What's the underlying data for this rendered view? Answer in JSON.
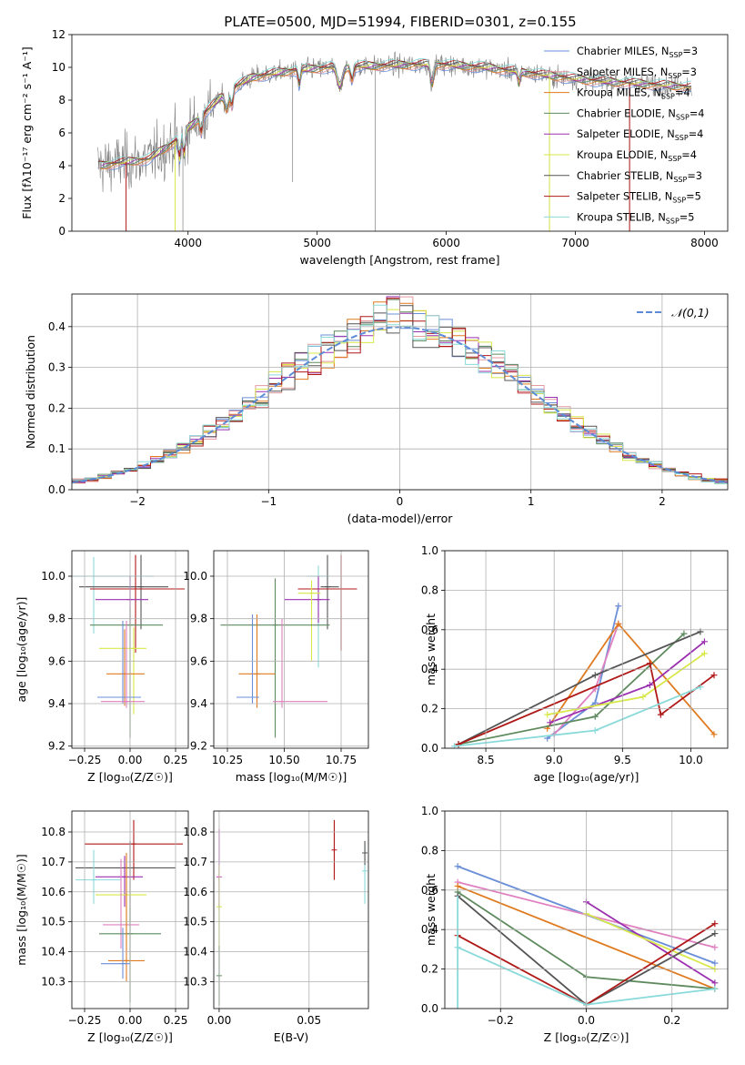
{
  "figure": {
    "title": "PLATE=0500, MJD=51994, FIBERID=0301, z=0.155"
  },
  "colors": {
    "chabrier_miles": "#6a8fd8",
    "salpeter_miles": "#e49a9f",
    "kroupa_miles": "#e07a1f",
    "chabrier_elodie": "#5e8a5e",
    "salpeter_elodie": "#9b30b0",
    "kroupa_elodie": "#d8e84a",
    "chabrier_stelib": "#555555",
    "salpeter_stelib": "#b01818",
    "kroupa_stelib": "#8adada",
    "extra_magenta": "#d048c8",
    "extra_pink": "#e080c0",
    "data_grey": "#808080",
    "normal_curve": "#5b8bd6"
  },
  "chart_data": [
    {
      "id": "spectrum",
      "type": "line",
      "xlabel": "wavelength [Angstrom, rest frame]",
      "ylabel": "Flux [fλ10⁻¹⁷ erg cm⁻² s⁻¹ A⁻¹]",
      "xlim": [
        3100,
        8180
      ],
      "ylim": [
        0,
        12
      ],
      "xticks": [
        4000,
        5000,
        6000,
        7000,
        8000
      ],
      "yticks": [
        0,
        2,
        4,
        6,
        8,
        10,
        12
      ],
      "legend_position": "upper right",
      "continuum": {
        "x": [
          3300,
          3500,
          3700,
          3900,
          4100,
          4300,
          4500,
          4800,
          5100,
          5500,
          5900,
          6300,
          6700,
          7100,
          7500,
          7900
        ],
        "y": [
          4.0,
          4.2,
          4.4,
          5.5,
          7.0,
          8.5,
          9.4,
          9.8,
          10.0,
          10.1,
          10.2,
          10.0,
          9.6,
          9.2,
          9.0,
          8.8
        ]
      },
      "series": [
        {
          "name": "Chabrier MILES, N",
          "sub": "SSP",
          "suffix": "=3",
          "color_key": "chabrier_miles"
        },
        {
          "name": "Salpeter MILES, N",
          "sub": "SSP",
          "suffix": "=3",
          "color_key": "salpeter_miles"
        },
        {
          "name": "Kroupa MILES, N",
          "sub": "SSP",
          "suffix": "=4",
          "color_key": "kroupa_miles"
        },
        {
          "name": "Chabrier ELODIE, N",
          "sub": "SSP",
          "suffix": "=4",
          "color_key": "chabrier_elodie"
        },
        {
          "name": "Salpeter ELODIE, N",
          "sub": "SSP",
          "suffix": "=4",
          "color_key": "salpeter_elodie"
        },
        {
          "name": "Kroupa ELODIE, N",
          "sub": "SSP",
          "suffix": "=4",
          "color_key": "kroupa_elodie"
        },
        {
          "name": "Chabrier STELIB, N",
          "sub": "SSP",
          "suffix": "=3",
          "color_key": "chabrier_stelib"
        },
        {
          "name": "Salpeter STELIB, N",
          "sub": "SSP",
          "suffix": "=5",
          "color_key": "salpeter_stelib"
        },
        {
          "name": "Kroupa STELIB, N",
          "sub": "SSP",
          "suffix": "=5",
          "color_key": "kroupa_stelib"
        }
      ]
    },
    {
      "id": "residuals",
      "type": "area",
      "xlabel": "(data-model)/error",
      "ylabel": "Normed distribution",
      "xlim": [
        -2.5,
        2.5
      ],
      "ylim": [
        0,
        0.48
      ],
      "xticks": [
        -2,
        -1,
        0,
        1,
        2
      ],
      "yticks": [
        0.0,
        0.1,
        0.2,
        0.3,
        0.4
      ],
      "legend": "𝒩(0,1)",
      "legend_position": "upper right",
      "bin_width": 0.1
    },
    {
      "id": "age_vs_Z",
      "type": "scatter",
      "xlabel": "Z [log₁₀(Z/Z☉)]",
      "ylabel": "age  [log₁₀(age/yr)]",
      "xlim": [
        -0.32,
        0.32
      ],
      "ylim": [
        9.19,
        10.12
      ],
      "xticks": [
        -0.25,
        0.0,
        0.25
      ],
      "yticks": [
        9.2,
        9.4,
        9.6,
        9.8,
        10.0
      ],
      "points": [
        {
          "x": -0.2,
          "y": 10.0,
          "xerr": [
            0.18,
            0.33
          ],
          "yerr": [
            0.27,
            0.09
          ],
          "c": "kroupa_stelib"
        },
        {
          "x": 0.06,
          "y": 9.95,
          "xerr": [
            0.34,
            0.15
          ],
          "yerr": [
            0.2,
            0.15
          ],
          "c": "chabrier_stelib"
        },
        {
          "x": 0.03,
          "y": 9.94,
          "xerr": [
            0.25,
            0.27
          ],
          "yerr": [
            0.3,
            0.16
          ],
          "c": "salpeter_stelib"
        },
        {
          "x": 0.0,
          "y": 9.89,
          "xerr": [
            0.19,
            0.1
          ],
          "yerr": [
            0.12,
            0.11
          ],
          "c": "salpeter_elodie"
        },
        {
          "x": 0.0,
          "y": 9.77,
          "xerr": [
            0.22,
            0.18
          ],
          "yerr": [
            0.53,
            0.08
          ],
          "c": "chabrier_elodie"
        },
        {
          "x": 0.02,
          "y": 9.66,
          "xerr": [
            0.19,
            0.07
          ],
          "yerr": [
            0.31,
            0.1
          ],
          "c": "kroupa_elodie"
        },
        {
          "x": -0.03,
          "y": 9.54,
          "xerr": [
            0.1,
            0.11
          ],
          "yerr": [
            0.15,
            0.21
          ],
          "c": "kroupa_miles"
        },
        {
          "x": -0.04,
          "y": 9.43,
          "xerr": [
            0.14,
            0.1
          ],
          "yerr": [
            0.03,
            0.36
          ],
          "c": "chabrier_miles"
        },
        {
          "x": -0.02,
          "y": 9.41,
          "xerr": [
            0.14,
            0.1
          ],
          "yerr": [
            0.03,
            0.38
          ],
          "c": "extra_pink"
        }
      ]
    },
    {
      "id": "age_vs_mass",
      "type": "scatter",
      "xlabel": "mass [log₁₀(M/M☉)]",
      "ylabel": "",
      "xlim": [
        10.19,
        10.87
      ],
      "ylim": [
        9.19,
        10.12
      ],
      "xticks": [
        10.25,
        10.5,
        10.75
      ],
      "yticks": [
        9.2,
        9.4,
        9.6,
        9.8,
        10.0
      ],
      "points": [
        {
          "x": 10.65,
          "y": 10.0,
          "xerr": [
            0.05,
            0.05
          ],
          "yerr": [
            0.43,
            0.05
          ],
          "c": "kroupa_stelib"
        },
        {
          "x": 10.69,
          "y": 9.95,
          "xerr": [
            0.03,
            0.05
          ],
          "yerr": [
            0.2,
            0.15
          ],
          "c": "chabrier_stelib"
        },
        {
          "x": 10.75,
          "y": 9.94,
          "xerr": [
            0.19,
            0.07
          ],
          "yerr": [
            0.29,
            0.16
          ],
          "c": "salpeter_stelib"
        },
        {
          "x": 10.65,
          "y": 9.89,
          "xerr": [
            0.15,
            0.05
          ],
          "yerr": [
            0.11,
            0.11
          ],
          "c": "salpeter_elodie"
        },
        {
          "x": 10.62,
          "y": 9.92,
          "xerr": [
            0.06,
            0.04
          ],
          "yerr": [
            0.32,
            0.06
          ],
          "c": "kroupa_elodie"
        },
        {
          "x": 10.46,
          "y": 9.77,
          "xerr": [
            0.24,
            0.24
          ],
          "yerr": [
            0.53,
            0.22
          ],
          "c": "chabrier_elodie"
        },
        {
          "x": 10.38,
          "y": 9.54,
          "xerr": [
            0.08,
            0.08
          ],
          "yerr": [
            0.16,
            0.28
          ],
          "c": "kroupa_miles"
        },
        {
          "x": 10.36,
          "y": 9.43,
          "xerr": [
            0.07,
            0.03
          ],
          "yerr": [
            0.03,
            0.39
          ],
          "c": "chabrier_miles"
        },
        {
          "x": 10.49,
          "y": 9.41,
          "xerr": [
            0.04,
            0.2
          ],
          "yerr": [
            0.03,
            0.39
          ],
          "c": "extra_pink"
        }
      ]
    },
    {
      "id": "weight_vs_age",
      "type": "line",
      "xlabel": "age  [log₁₀(age/yr)]",
      "ylabel": "mass weight",
      "xlim": [
        8.2,
        10.27
      ],
      "ylim": [
        0,
        1
      ],
      "xticks": [
        8.5,
        9.0,
        9.5,
        10.0
      ],
      "yticks": [
        0.0,
        0.2,
        0.4,
        0.6,
        0.8,
        1.0
      ],
      "series": [
        {
          "c": "chabrier_miles",
          "x": [
            8.95,
            9.3,
            9.47
          ],
          "y": [
            0.05,
            0.23,
            0.72
          ]
        },
        {
          "c": "extra_pink",
          "x": [
            9.0,
            9.3,
            9.47
          ],
          "y": [
            0.07,
            0.3,
            0.63
          ]
        },
        {
          "c": "kroupa_miles",
          "x": [
            8.95,
            9.47,
            10.17
          ],
          "y": [
            0.1,
            0.63,
            0.07
          ]
        },
        {
          "c": "chabrier_elodie",
          "x": [
            8.3,
            9.3,
            9.95
          ],
          "y": [
            0.02,
            0.16,
            0.58
          ]
        },
        {
          "c": "salpeter_elodie",
          "x": [
            8.97,
            9.7,
            10.1
          ],
          "y": [
            0.13,
            0.32,
            0.54
          ]
        },
        {
          "c": "kroupa_elodie",
          "x": [
            8.95,
            9.65,
            10.1
          ],
          "y": [
            0.17,
            0.26,
            0.48
          ]
        },
        {
          "c": "chabrier_stelib",
          "x": [
            8.3,
            9.3,
            10.07
          ],
          "y": [
            0.02,
            0.37,
            0.59
          ]
        },
        {
          "c": "salpeter_stelib",
          "x": [
            8.3,
            9.7,
            9.78,
            10.17
          ],
          "y": [
            0.02,
            0.43,
            0.17,
            0.37
          ]
        },
        {
          "c": "kroupa_stelib",
          "x": [
            8.27,
            9.3,
            10.07
          ],
          "y": [
            0.01,
            0.09,
            0.31
          ]
        }
      ]
    },
    {
      "id": "mass_vs_Z",
      "type": "scatter",
      "xlabel": "Z [log₁₀(Z/Z☉)]",
      "ylabel": "mass [log₁₀(M/M☉)]",
      "xlim": [
        -0.32,
        0.32
      ],
      "ylim": [
        10.21,
        10.87
      ],
      "xticks": [
        -0.25,
        0.0,
        0.25
      ],
      "yticks": [
        10.3,
        10.4,
        10.5,
        10.6,
        10.7,
        10.8
      ],
      "points": [
        {
          "x": 0.02,
          "y": 10.76,
          "xerr": [
            0.27,
            0.27
          ],
          "yerr": [
            0.12,
            0.08
          ],
          "c": "salpeter_stelib"
        },
        {
          "x": 0.0,
          "y": 10.68,
          "xerr": [
            0.3,
            0.25
          ],
          "yerr": [
            0.18,
            0.09
          ],
          "c": "chabrier_stelib"
        },
        {
          "x": -0.03,
          "y": 10.65,
          "xerr": [
            0.16,
            0.1
          ],
          "yerr": [
            0.1,
            0.07
          ],
          "c": "salpeter_elodie"
        },
        {
          "x": -0.2,
          "y": 10.64,
          "xerr": [
            0.1,
            0.15
          ],
          "yerr": [
            0.08,
            0.1
          ],
          "c": "kroupa_stelib"
        },
        {
          "x": -0.02,
          "y": 10.59,
          "xerr": [
            0.17,
            0.11
          ],
          "yerr": [
            0.18,
            0.1
          ],
          "c": "kroupa_elodie"
        },
        {
          "x": -0.05,
          "y": 10.49,
          "xerr": [
            0.1,
            0.1
          ],
          "yerr": [
            0.08,
            0.22
          ],
          "c": "extra_pink"
        },
        {
          "x": 0.0,
          "y": 10.46,
          "xerr": [
            0.17,
            0.17
          ],
          "yerr": [
            0.23,
            0.09
          ],
          "c": "chabrier_elodie"
        },
        {
          "x": -0.02,
          "y": 10.37,
          "xerr": [
            0.1,
            0.1
          ],
          "yerr": [
            0.07,
            0.36
          ],
          "c": "kroupa_miles"
        },
        {
          "x": -0.04,
          "y": 10.36,
          "xerr": [
            0.12,
            0.04
          ],
          "yerr": [
            0.05,
            0.12
          ],
          "c": "chabrier_miles"
        }
      ]
    },
    {
      "id": "mass_vs_ebv",
      "type": "scatter",
      "xlabel": "E(B-V)",
      "ylabel": "",
      "xlim": [
        -0.003,
        0.083
      ],
      "ylim": [
        10.21,
        10.87
      ],
      "xticks": [
        0.0,
        0.05
      ],
      "yticks": [
        10.3,
        10.4,
        10.5,
        10.6,
        10.7,
        10.8
      ],
      "points": [
        {
          "x": 0.0,
          "y": 10.65,
          "xerr": [
            0,
            0
          ],
          "yerr": [
            0.1,
            0.16
          ],
          "c": "extra_magenta"
        },
        {
          "x": 0.0,
          "y": 10.55,
          "xerr": [
            0,
            0
          ],
          "yerr": [
            0.15,
            0.14
          ],
          "c": "kroupa_elodie"
        },
        {
          "x": 0.0,
          "y": 10.32,
          "xerr": [
            0,
            0
          ],
          "yerr": [
            0.1,
            0.1
          ],
          "c": "chabrier_elodie"
        },
        {
          "x": 0.064,
          "y": 10.74,
          "xerr": [
            0,
            0
          ],
          "yerr": [
            0.1,
            0.1
          ],
          "c": "salpeter_stelib"
        },
        {
          "x": 0.081,
          "y": 10.67,
          "xerr": [
            0,
            0
          ],
          "yerr": [
            0.11,
            0.1
          ],
          "c": "kroupa_stelib"
        },
        {
          "x": 0.081,
          "y": 10.73,
          "xerr": [
            0,
            0
          ],
          "yerr": [
            0.04,
            0.04
          ],
          "c": "chabrier_stelib"
        }
      ]
    },
    {
      "id": "weight_vs_Z",
      "type": "line",
      "xlabel": "Z [log₁₀(Z/Z☉)]",
      "ylabel": "mass weight",
      "xlim": [
        -0.33,
        0.33
      ],
      "ylim": [
        0,
        1
      ],
      "xticks": [
        -0.2,
        0.0,
        0.2
      ],
      "yticks": [
        0.0,
        0.2,
        0.4,
        0.6,
        0.8,
        1.0
      ],
      "series": [
        {
          "c": "chabrier_miles",
          "x": [
            -0.3,
            0.3
          ],
          "y": [
            0.72,
            0.23
          ]
        },
        {
          "c": "extra_pink",
          "x": [
            -0.3,
            0.3
          ],
          "y": [
            0.64,
            0.31
          ]
        },
        {
          "c": "kroupa_miles",
          "x": [
            -0.3,
            0.3
          ],
          "y": [
            0.62,
            0.1
          ]
        },
        {
          "c": "chabrier_elodie",
          "x": [
            -0.3,
            0.0,
            0.3
          ],
          "y": [
            0.59,
            0.16,
            0.1
          ]
        },
        {
          "c": "salpeter_elodie",
          "x": [
            0.0,
            0.3
          ],
          "y": [
            0.54,
            0.13
          ]
        },
        {
          "c": "kroupa_elodie",
          "x": [
            0.0,
            0.3
          ],
          "y": [
            0.48,
            0.2
          ]
        },
        {
          "c": "chabrier_stelib",
          "x": [
            -0.3,
            0.0,
            0.3
          ],
          "y": [
            0.57,
            0.02,
            0.38
          ]
        },
        {
          "c": "salpeter_stelib",
          "x": [
            -0.3,
            0.0,
            0.3
          ],
          "y": [
            0.37,
            0.02,
            0.43
          ]
        },
        {
          "c": "kroupa_stelib",
          "x": [
            -0.3,
            0.0,
            0.3
          ],
          "y": [
            0.31,
            0.02,
            0.1
          ]
        }
      ]
    }
  ]
}
